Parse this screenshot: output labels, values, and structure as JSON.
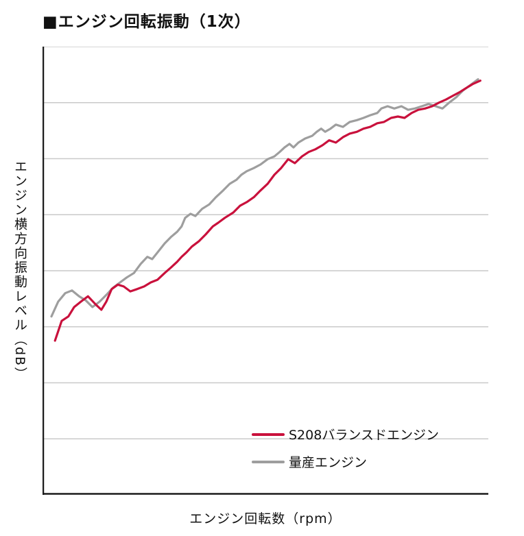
{
  "title": "■エンジン回転振動（1次）",
  "y_axis_label": "エンジン横方向振動レベル（dB）",
  "x_axis_label": "エンジン回転数（rpm）",
  "colors": {
    "background": "#ffffff",
    "grid": "#c9c9c9",
    "axis": "#1a1a1a",
    "series_red": "#c9113c",
    "series_gray": "#9e9e9e"
  },
  "chart_data": {
    "type": "line",
    "title": "エンジン回転振動（1次）",
    "xlabel": "エンジン回転数（rpm）",
    "ylabel": "エンジン横方向振動レベル（dB）",
    "axis_tick_labels_visible": false,
    "x_range_normalized": [
      0,
      100
    ],
    "y_range_normalized": [
      0,
      100
    ],
    "gridlines_horizontal": 8,
    "grid": true,
    "legend_position": "inside-bottom-right",
    "series": [
      {
        "name": "S208バランスドエンジン",
        "color": "#c9113c",
        "points": [
          [
            2.8,
            34.4
          ],
          [
            4.3,
            38.8
          ],
          [
            5.8,
            39.8
          ],
          [
            7.1,
            41.9
          ],
          [
            8.6,
            43.1
          ],
          [
            10.2,
            44.3
          ],
          [
            12.0,
            42.4
          ],
          [
            13.2,
            41.3
          ],
          [
            14.3,
            43.1
          ],
          [
            15.5,
            45.9
          ],
          [
            16.9,
            46.9
          ],
          [
            18.2,
            46.5
          ],
          [
            19.7,
            45.4
          ],
          [
            21.2,
            45.9
          ],
          [
            22.8,
            46.5
          ],
          [
            24.3,
            47.4
          ],
          [
            25.8,
            48.0
          ],
          [
            27.4,
            49.5
          ],
          [
            28.9,
            50.8
          ],
          [
            30.2,
            52.0
          ],
          [
            31.2,
            53.1
          ],
          [
            32.3,
            54.1
          ],
          [
            33.5,
            55.4
          ],
          [
            35.1,
            56.6
          ],
          [
            36.6,
            58.1
          ],
          [
            38.2,
            59.9
          ],
          [
            39.4,
            60.7
          ],
          [
            40.9,
            61.8
          ],
          [
            42.8,
            63.0
          ],
          [
            44.3,
            64.5
          ],
          [
            45.8,
            65.3
          ],
          [
            47.4,
            66.4
          ],
          [
            48.9,
            67.9
          ],
          [
            50.5,
            69.4
          ],
          [
            52.0,
            71.4
          ],
          [
            53.5,
            72.9
          ],
          [
            55.1,
            74.9
          ],
          [
            56.6,
            74.0
          ],
          [
            58.2,
            75.5
          ],
          [
            59.7,
            76.5
          ],
          [
            61.2,
            77.1
          ],
          [
            62.8,
            78.0
          ],
          [
            64.3,
            79.1
          ],
          [
            65.8,
            78.6
          ],
          [
            67.4,
            79.8
          ],
          [
            68.9,
            80.6
          ],
          [
            70.5,
            81.0
          ],
          [
            72.0,
            81.7
          ],
          [
            73.5,
            82.1
          ],
          [
            75.1,
            82.9
          ],
          [
            76.6,
            83.2
          ],
          [
            78.2,
            84.1
          ],
          [
            79.7,
            84.4
          ],
          [
            81.2,
            84.1
          ],
          [
            82.8,
            85.2
          ],
          [
            84.3,
            85.9
          ],
          [
            85.8,
            86.2
          ],
          [
            87.4,
            86.7
          ],
          [
            88.9,
            87.5
          ],
          [
            90.5,
            88.2
          ],
          [
            92.0,
            89.0
          ],
          [
            93.5,
            89.8
          ],
          [
            95.1,
            90.8
          ],
          [
            96.6,
            91.7
          ],
          [
            98.2,
            92.4
          ]
        ]
      },
      {
        "name": "量産エンジン",
        "color": "#9e9e9e",
        "points": [
          [
            2.0,
            39.8
          ],
          [
            3.5,
            43.1
          ],
          [
            5.1,
            45.0
          ],
          [
            6.6,
            45.6
          ],
          [
            8.2,
            44.3
          ],
          [
            9.7,
            43.4
          ],
          [
            11.2,
            41.9
          ],
          [
            12.8,
            43.1
          ],
          [
            14.3,
            44.6
          ],
          [
            15.8,
            46.2
          ],
          [
            17.4,
            47.4
          ],
          [
            18.9,
            48.5
          ],
          [
            20.5,
            49.5
          ],
          [
            22.0,
            51.5
          ],
          [
            23.5,
            53.1
          ],
          [
            24.6,
            52.6
          ],
          [
            25.8,
            54.1
          ],
          [
            27.4,
            56.1
          ],
          [
            28.9,
            57.6
          ],
          [
            30.2,
            58.7
          ],
          [
            31.2,
            59.9
          ],
          [
            32.0,
            61.8
          ],
          [
            33.2,
            62.7
          ],
          [
            34.3,
            62.2
          ],
          [
            35.8,
            63.8
          ],
          [
            37.4,
            64.8
          ],
          [
            38.9,
            66.4
          ],
          [
            40.5,
            67.9
          ],
          [
            42.0,
            69.4
          ],
          [
            43.5,
            70.3
          ],
          [
            44.6,
            71.4
          ],
          [
            45.8,
            72.2
          ],
          [
            47.4,
            72.9
          ],
          [
            48.9,
            73.7
          ],
          [
            50.5,
            74.9
          ],
          [
            52.0,
            75.5
          ],
          [
            53.2,
            76.5
          ],
          [
            54.3,
            77.5
          ],
          [
            55.4,
            78.3
          ],
          [
            56.3,
            77.5
          ],
          [
            57.4,
            78.6
          ],
          [
            58.9,
            79.5
          ],
          [
            60.5,
            80.1
          ],
          [
            61.5,
            81.0
          ],
          [
            62.5,
            81.7
          ],
          [
            63.4,
            81.0
          ],
          [
            64.6,
            81.7
          ],
          [
            65.8,
            82.6
          ],
          [
            67.4,
            82.1
          ],
          [
            68.9,
            83.2
          ],
          [
            70.5,
            83.6
          ],
          [
            72.0,
            84.1
          ],
          [
            73.5,
            84.7
          ],
          [
            75.1,
            85.2
          ],
          [
            76.0,
            86.2
          ],
          [
            77.4,
            86.7
          ],
          [
            78.9,
            86.2
          ],
          [
            80.5,
            86.7
          ],
          [
            82.0,
            85.9
          ],
          [
            83.5,
            86.2
          ],
          [
            85.1,
            86.7
          ],
          [
            86.6,
            87.2
          ],
          [
            88.2,
            86.7
          ],
          [
            89.7,
            86.2
          ],
          [
            91.2,
            87.5
          ],
          [
            92.8,
            88.7
          ],
          [
            94.3,
            90.2
          ],
          [
            95.8,
            91.3
          ],
          [
            97.7,
            92.7
          ]
        ]
      }
    ]
  },
  "legend": {
    "items": [
      {
        "label": "S208バランスドエンジン",
        "color": "#c9113c"
      },
      {
        "label": "量産エンジン",
        "color": "#9e9e9e"
      }
    ]
  }
}
